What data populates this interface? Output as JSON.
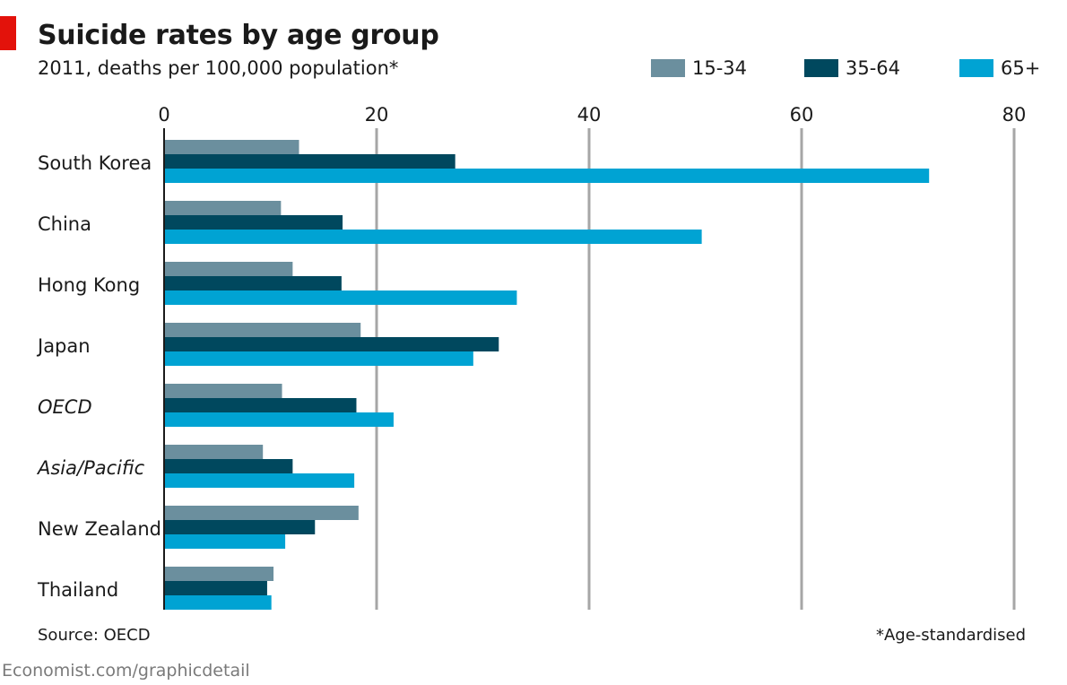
{
  "header": {
    "title": "Suicide rates by age group",
    "subtitle": "2011, deaths per 100,000 population*"
  },
  "footer": {
    "source": "Source: OECD",
    "footnote": "*Age-standardised",
    "site": "Economist.com/graphicdetail"
  },
  "colors": {
    "accent": "#e3120b",
    "series_15_34": "#6b8f9e",
    "series_35_64": "#00485e",
    "series_65_plus": "#00a3d3",
    "gridline": "#a6a6a6",
    "axis": "#1a1a1a"
  },
  "chart_data": {
    "type": "bar",
    "orientation": "horizontal",
    "title": "Suicide rates by age group",
    "subtitle": "2011, deaths per 100,000 population*",
    "xlabel": "",
    "ylabel": "",
    "xlim": [
      0,
      80
    ],
    "xticks": [
      0,
      20,
      40,
      60,
      80
    ],
    "grid": true,
    "legend_position": "top-right",
    "categories": [
      "South Korea",
      "China",
      "Hong Kong",
      "Japan",
      "OECD",
      "Asia/Pacific",
      "New Zealand",
      "Thailand"
    ],
    "italic_categories": [
      "OECD",
      "Asia/Pacific"
    ],
    "series": [
      {
        "name": "15-34",
        "color": "#6b8f9e",
        "values": [
          12.7,
          11.0,
          12.1,
          18.5,
          11.1,
          9.3,
          18.3,
          10.3
        ]
      },
      {
        "name": "35-64",
        "color": "#00485e",
        "values": [
          27.4,
          16.8,
          16.7,
          31.5,
          18.1,
          12.1,
          14.2,
          9.7
        ]
      },
      {
        "name": "65+",
        "color": "#00a3d3",
        "values": [
          72.0,
          50.6,
          33.2,
          29.1,
          21.6,
          17.9,
          11.4,
          10.1
        ]
      }
    ]
  }
}
